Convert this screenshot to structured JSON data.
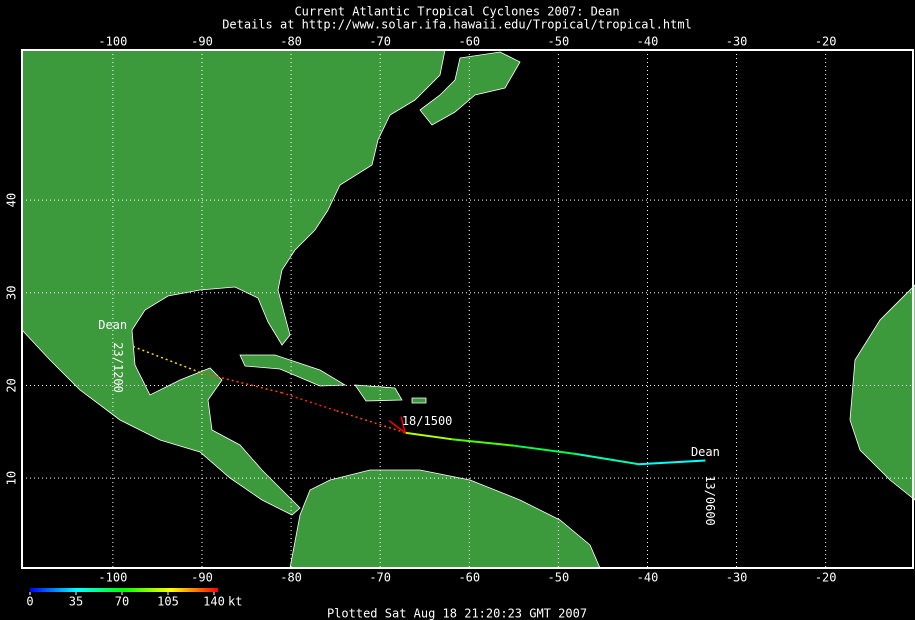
{
  "header": {
    "title": "Current Atlantic Tropical Cyclones 2007: Dean",
    "subtitle": "Details at http://www.solar.ifa.hawaii.edu/Tropical/tropical.html"
  },
  "map": {
    "xlim": [
      -110.2,
      -10.2
    ],
    "ylim": [
      0.3,
      56.2
    ],
    "xticks": [
      -100,
      -90,
      -80,
      -70,
      -60,
      -50,
      -40,
      -30,
      -20
    ],
    "yticks": [
      10,
      20,
      30,
      40
    ],
    "grid": true
  },
  "storm": {
    "name": "Dean",
    "track": {
      "lon": [
        -33.5,
        -41,
        -48,
        -55,
        -62,
        -67.2
      ],
      "lat": [
        11.9,
        11.5,
        12.6,
        13.5,
        14.2,
        14.9
      ],
      "wind": [
        35,
        45,
        60,
        80,
        95,
        130
      ]
    },
    "forecast": {
      "lon": [
        -67.2,
        -75,
        -81,
        -90.2,
        -98
      ],
      "lat": [
        14.9,
        17.3,
        19.2,
        21.4,
        24.3
      ],
      "wind": [
        130,
        135,
        130,
        110,
        90
      ]
    },
    "labels": {
      "start": "13/0600",
      "current": "18/1500",
      "end": "23/1200"
    }
  },
  "colorbar": {
    "ticks": [
      0,
      35,
      70,
      105,
      140
    ],
    "unit": "kt"
  },
  "footer": "Plotted Sat Aug 18 21:20:23 GMT 2007"
}
